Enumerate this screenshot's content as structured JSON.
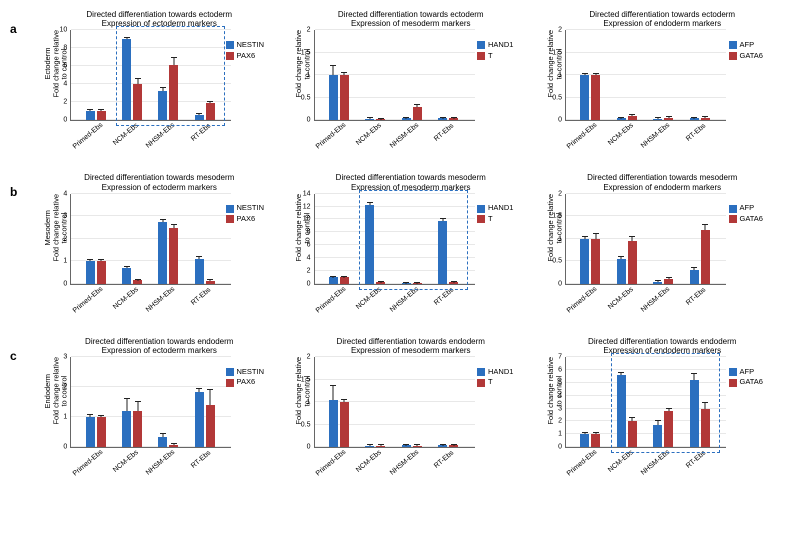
{
  "colors": {
    "series1": "#2b6fbf",
    "series2": "#b23838",
    "highlight": "#2b6fbf",
    "grid": "#e8e8e8"
  },
  "categories": [
    "Primed-Ebs",
    "NCM-Ebs",
    "NHSM-Ebs",
    "RT-Ebs"
  ],
  "ylabel": {
    "line1": "Fold change relative",
    "line2": "to control"
  },
  "rows": [
    {
      "label": "a",
      "row_ylabel": "Ectoderm",
      "panels": [
        {
          "title1": "Directed differentiation towards ectoderm",
          "title2": "Expression of ectoderm markers",
          "legend": [
            "NESTIN",
            "PAX6"
          ],
          "ymax": 10,
          "ystep": 2,
          "series1": [
            1,
            9,
            3.3,
            0.6
          ],
          "series2": [
            1,
            4,
            6.1,
            1.9
          ],
          "err1": [
            0.1,
            0.1,
            0.3,
            0.1
          ],
          "err2": [
            0.1,
            0.6,
            0.8,
            0.1
          ],
          "highlight": true
        },
        {
          "title1": "Directed differentiation towards ectoderm",
          "title2": "Expression of mesoderm markers",
          "legend": [
            "HAND1",
            "T"
          ],
          "ymax": 2,
          "ystep": 0.5,
          "series1": [
            1,
            0.04,
            0.05,
            0.05
          ],
          "series2": [
            1,
            0.03,
            0.3,
            0.05
          ],
          "err1": [
            0.2,
            0.01,
            0.01,
            0.01
          ],
          "err2": [
            0.05,
            0.01,
            0.05,
            0.01
          ],
          "highlight": false
        },
        {
          "title1": "Directed differentiation towards ectoderm",
          "title2": "Expression of endoderm markers",
          "legend": [
            "AFP",
            "GATA6"
          ],
          "ymax": 2,
          "ystep": 0.5,
          "series1": [
            1,
            0.05,
            0.04,
            0.05
          ],
          "series2": [
            1,
            0.1,
            0.06,
            0.06
          ],
          "err1": [
            0.03,
            0.01,
            0.01,
            0.01
          ],
          "err2": [
            0.03,
            0.02,
            0.01,
            0.01
          ],
          "highlight": false
        }
      ]
    },
    {
      "label": "b",
      "row_ylabel": "Mesoderm",
      "panels": [
        {
          "title1": "Directed differentiation towards mesoderm",
          "title2": "Expression of ectoderm markers",
          "legend": [
            "NESTIN",
            "PAX6"
          ],
          "ymax": 4,
          "ystep": 1,
          "series1": [
            1,
            0.7,
            2.75,
            1.1
          ],
          "series2": [
            1,
            0.15,
            2.5,
            0.12
          ],
          "err1": [
            0.05,
            0.05,
            0.1,
            0.1
          ],
          "err2": [
            0.05,
            0.03,
            0.1,
            0.03
          ],
          "highlight": false
        },
        {
          "title1": "Directed differentiation towards mesoderm",
          "title2": "Expression of mesoderm markers",
          "legend": [
            "HAND1",
            "T"
          ],
          "ymax": 14,
          "ystep": 2,
          "series1": [
            1,
            12.2,
            0.15,
            9.7
          ],
          "series2": [
            1,
            0.2,
            0.15,
            0.2
          ],
          "err1": [
            0.05,
            0.3,
            0.03,
            0.4
          ],
          "err2": [
            0.05,
            0.05,
            0.03,
            0.05
          ],
          "highlight": true
        },
        {
          "title1": "Directed differentiation towards mesoderm",
          "title2": "Expression of endoderm markers",
          "legend": [
            "AFP",
            "GATA6"
          ],
          "ymax": 2,
          "ystep": 0.5,
          "series1": [
            1,
            0.55,
            0.05,
            0.3
          ],
          "series2": [
            1,
            0.95,
            0.1,
            1.2
          ],
          "err1": [
            0.05,
            0.05,
            0.01,
            0.05
          ],
          "err2": [
            0.1,
            0.1,
            0.03,
            0.1
          ],
          "highlight": false
        }
      ]
    },
    {
      "label": "c",
      "row_ylabel": "Endoderm",
      "panels": [
        {
          "title1": "Directed differentiation towards endoderm",
          "title2": "Expression of ectoderm markers",
          "legend": [
            "NESTIN",
            "PAX6"
          ],
          "ymax": 3,
          "ystep": 1,
          "series1": [
            1,
            1.2,
            0.35,
            1.85
          ],
          "series2": [
            1,
            1.2,
            0.08,
            1.4
          ],
          "err1": [
            0.08,
            0.4,
            0.08,
            0.1
          ],
          "err2": [
            0.05,
            0.3,
            0.02,
            0.5
          ],
          "highlight": false
        },
        {
          "title1": "Directed differentiation towards endoderm",
          "title2": "Expression of mesoderm markers",
          "legend": [
            "HAND1",
            "T"
          ],
          "ymax": 2,
          "ystep": 0.5,
          "series1": [
            1.05,
            0.03,
            0.04,
            0.04
          ],
          "series2": [
            1,
            0.03,
            0.03,
            0.04
          ],
          "err1": [
            0.3,
            0.01,
            0.01,
            0.01
          ],
          "err2": [
            0.05,
            0.01,
            0.01,
            0.01
          ],
          "highlight": false
        },
        {
          "title1": "Directed differentiation towards endoderm",
          "title2": "Expression of endoderm markers",
          "legend": [
            "AFP",
            "GATA6"
          ],
          "ymax": 7,
          "ystep": 1,
          "series1": [
            1,
            5.6,
            1.7,
            5.2
          ],
          "series2": [
            1,
            2.0,
            2.8,
            3.0
          ],
          "err1": [
            0.1,
            0.15,
            0.3,
            0.5
          ],
          "err2": [
            0.1,
            0.25,
            0.2,
            0.4
          ],
          "highlight": true
        }
      ]
    }
  ]
}
